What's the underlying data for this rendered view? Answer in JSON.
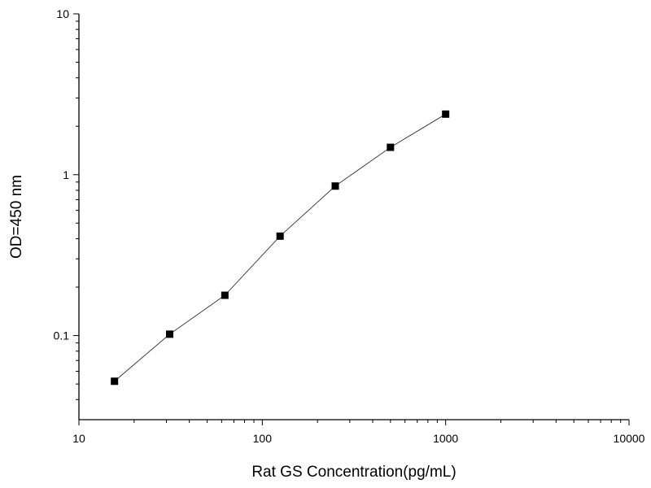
{
  "chart_data": {
    "type": "line",
    "xlabel": "Rat GS Concentration(pg/mL)",
    "ylabel": "OD=450 nm",
    "xscale": "log",
    "yscale": "log",
    "xlim": [
      10,
      10000
    ],
    "ylim": [
      0.03,
      10
    ],
    "x_ticks": [
      {
        "value": 10,
        "label": "10"
      },
      {
        "value": 100,
        "label": "100"
      },
      {
        "value": 1000,
        "label": "1000"
      },
      {
        "value": 10000,
        "label": "10000"
      }
    ],
    "y_ticks": [
      {
        "value": 0.1,
        "label": "0.1"
      },
      {
        "value": 1,
        "label": "1"
      },
      {
        "value": 10,
        "label": "10"
      }
    ],
    "grid": false,
    "legend": "none",
    "series": [
      {
        "marker": "square",
        "color": "#000000",
        "x": [
          15.625,
          31.25,
          62.5,
          125,
          250,
          500,
          1000
        ],
        "y": [
          0.052,
          0.102,
          0.178,
          0.415,
          0.85,
          1.48,
          2.38
        ]
      }
    ]
  }
}
